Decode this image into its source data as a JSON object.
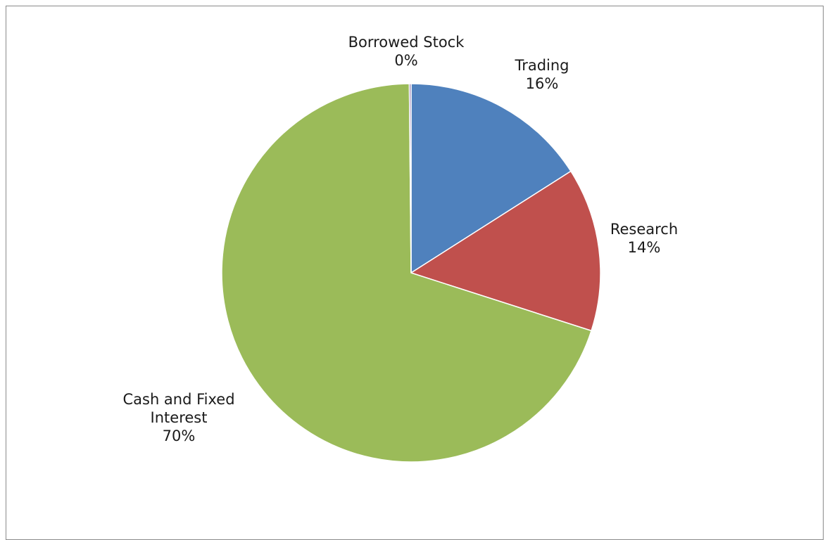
{
  "chart_data": {
    "type": "pie",
    "title": "",
    "slices": [
      {
        "name": "Trading",
        "value": 16,
        "label_lines": [
          "Trading",
          "16%"
        ],
        "color": "#4F81BD"
      },
      {
        "name": "Research",
        "value": 14,
        "label_lines": [
          "Research",
          "14%"
        ],
        "color": "#C0504D"
      },
      {
        "name": "Cash and Fixed Interest",
        "value": 70,
        "label_lines": [
          "Cash and Fixed",
          "Interest",
          "70%"
        ],
        "color": "#9BBB59"
      },
      {
        "name": "Borrowed Stock",
        "value": 0.15,
        "label_lines": [
          "Borrowed Stock",
          "0%"
        ],
        "color": "#8064A2"
      }
    ],
    "start_angle_deg": 0,
    "direction": "clockwise",
    "legend": "none"
  }
}
